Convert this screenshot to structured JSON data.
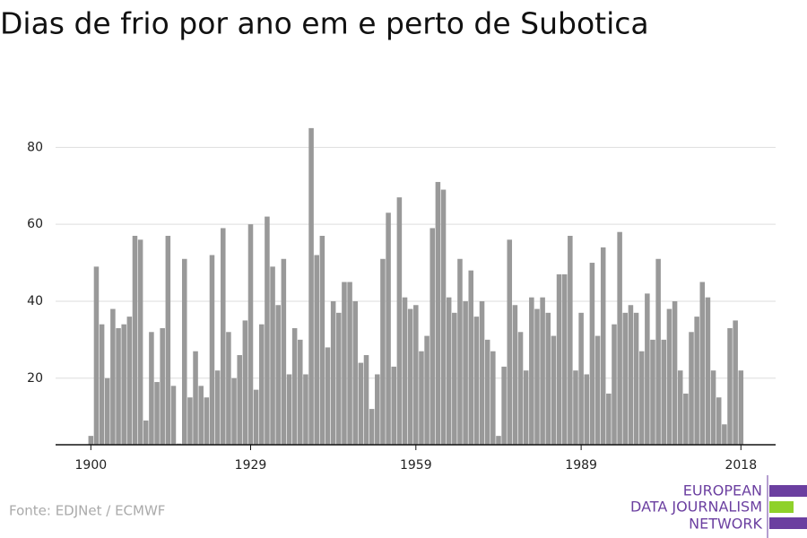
{
  "chart_data": {
    "type": "bar",
    "title": "Dias de frio por ano em e perto de Subotica",
    "source": "Fonte: EDJNet / ECMWF",
    "logo": [
      "EUROPEAN",
      "DATA JOURNALISM",
      "NETWORK"
    ],
    "color": "#999999",
    "x": [
      1900,
      1901,
      1902,
      1903,
      1904,
      1905,
      1906,
      1907,
      1908,
      1909,
      1910,
      1911,
      1912,
      1913,
      1914,
      1915,
      1916,
      1917,
      1918,
      1919,
      1920,
      1921,
      1922,
      1923,
      1924,
      1925,
      1926,
      1927,
      1928,
      1929,
      1930,
      1931,
      1932,
      1933,
      1934,
      1935,
      1936,
      1937,
      1938,
      1939,
      1940,
      1941,
      1942,
      1943,
      1944,
      1945,
      1946,
      1947,
      1948,
      1949,
      1950,
      1951,
      1952,
      1953,
      1954,
      1955,
      1956,
      1957,
      1958,
      1959,
      1960,
      1961,
      1962,
      1963,
      1964,
      1965,
      1966,
      1967,
      1968,
      1969,
      1970,
      1971,
      1972,
      1973,
      1974,
      1975,
      1976,
      1977,
      1978,
      1979,
      1980,
      1981,
      1982,
      1983,
      1984,
      1985,
      1986,
      1987,
      1988,
      1989,
      1990,
      1991,
      1992,
      1993,
      1994,
      1995,
      1996,
      1997,
      1998,
      1999,
      2000,
      2001,
      2002,
      2003,
      2004,
      2005,
      2006,
      2007,
      2008,
      2009,
      2010,
      2011,
      2012,
      2013,
      2014,
      2015,
      2016,
      2017,
      2018
    ],
    "values": [
      5,
      49,
      34,
      20,
      38,
      33,
      34,
      36,
      57,
      56,
      9,
      32,
      19,
      33,
      57,
      18,
      3,
      51,
      15,
      27,
      18,
      15,
      52,
      22,
      59,
      32,
      20,
      26,
      35,
      60,
      17,
      34,
      62,
      49,
      39,
      51,
      21,
      33,
      30,
      21,
      85,
      52,
      57,
      28,
      40,
      37,
      45,
      45,
      40,
      24,
      26,
      12,
      21,
      51,
      63,
      23,
      67,
      41,
      38,
      39,
      27,
      31,
      59,
      71,
      69,
      41,
      37,
      51,
      40,
      48,
      36,
      40,
      30,
      27,
      5,
      23,
      56,
      39,
      32,
      22,
      41,
      38,
      41,
      37,
      31,
      47,
      47,
      57,
      22,
      37,
      21,
      50,
      31,
      54,
      16,
      34,
      58,
      37,
      39,
      37,
      27,
      42,
      30,
      51,
      30,
      38,
      40,
      22,
      16,
      32,
      36,
      45,
      41,
      22,
      15,
      8,
      33,
      35,
      22
    ],
    "xlim": [
      1893.6,
      2024.3
    ],
    "xticks": [
      1900,
      1929,
      1959,
      1989,
      2018
    ],
    "ylim": [
      2.7,
      88
    ],
    "yticks": [
      20,
      40,
      60,
      80
    ],
    "grid": true
  }
}
